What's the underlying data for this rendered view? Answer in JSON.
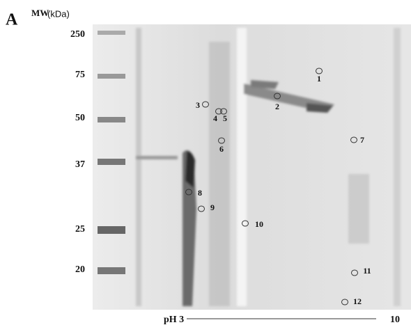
{
  "panel_label": "A",
  "axis_title": "MW",
  "axis_unit": "(kDa)",
  "mw_markers": [
    "250",
    "75",
    "50",
    "37",
    "25",
    "20"
  ],
  "ph_axis": {
    "start": "pH 3",
    "end": "10"
  },
  "spots": [
    "1",
    "2",
    "3",
    "4",
    "5",
    "6",
    "7",
    "8",
    "9",
    "10",
    "11",
    "12"
  ]
}
